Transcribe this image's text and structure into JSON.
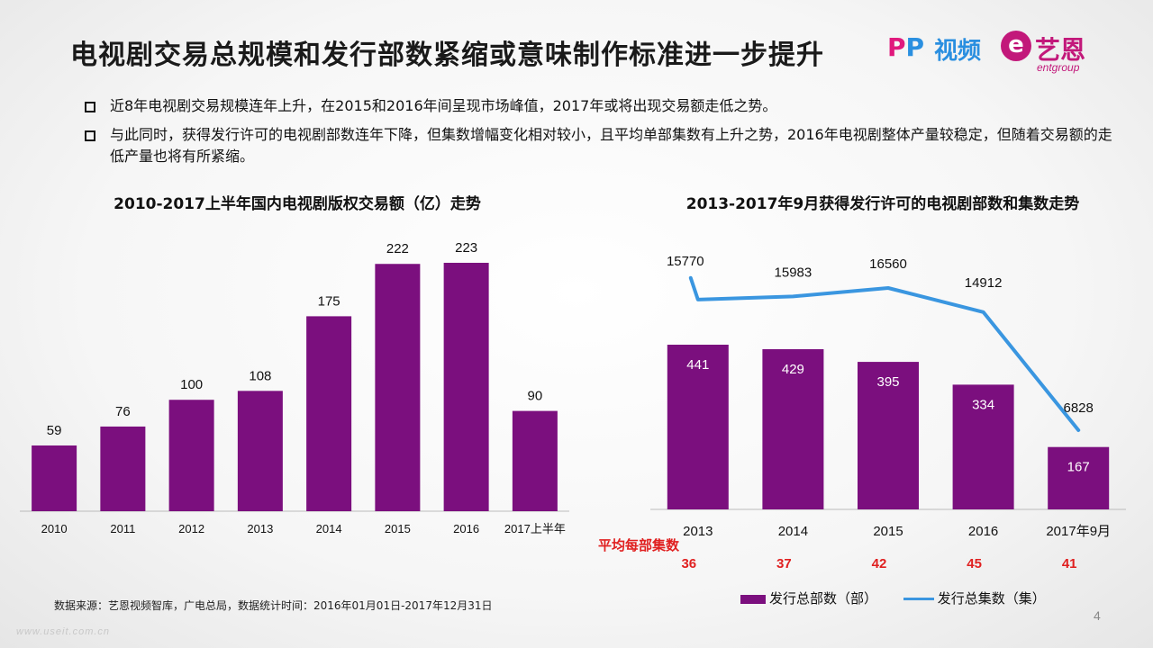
{
  "title": "电视剧交易总规模和发行部数紧缩或意味制作标准进一步提升",
  "logo": {
    "pp_text_1": "P",
    "pp_text_2": "P",
    "video_text": "视频",
    "e_text": "e",
    "yien_text": "艺恩",
    "entgroup_text": "entgroup"
  },
  "bullets": [
    "近8年电视剧交易规模连年上升，在2015和2016年间呈现市场峰值，2017年或将出现交易额走低之势。",
    "与此同时，获得发行许可的电视剧部数连年下降，但集数增幅变化相对较小，且平均单部集数有上升之势，2016年电视剧整体产量较稳定，但随着交易额的走低产量也将有所紧缩。"
  ],
  "colors": {
    "bar": "#7b0f7e",
    "line": "#3a96e0",
    "avg_text": "#e02020"
  },
  "chart_data": [
    {
      "type": "bar",
      "title": "2010-2017上半年国内电视剧版权交易额（亿）走势",
      "categories": [
        "2010",
        "2011",
        "2012",
        "2013",
        "2014",
        "2015",
        "2016",
        "2017上半年"
      ],
      "values": [
        59,
        76,
        100,
        108,
        175,
        222,
        223,
        90
      ],
      "xlabel": "",
      "ylabel": "",
      "ylim": [
        0,
        240
      ],
      "grid": false
    },
    {
      "type": "bar+line",
      "title": "2013-2017年9月获得发行许可的电视剧部数和集数走势",
      "categories": [
        "2013",
        "2014",
        "2015",
        "2016",
        "2017年9月"
      ],
      "series": [
        {
          "name": "发行总部数（部）",
          "type": "bar",
          "values": [
            441,
            429,
            395,
            334,
            167
          ]
        },
        {
          "name": "发行总集数（集）",
          "type": "line",
          "values": [
            15770,
            15983,
            16560,
            14912,
            6828
          ]
        }
      ],
      "avg_label": "平均每部集数",
      "avg_values": [
        36,
        37,
        42,
        45,
        41
      ],
      "legend": "bottom",
      "grid": false
    }
  ],
  "footer": {
    "source": "数据来源：艺恩视频智库，广电总局，数据统计时间：2016年01月01日-2017年12月31日",
    "page_number": "4",
    "watermark": "www.useit.com.cn"
  }
}
